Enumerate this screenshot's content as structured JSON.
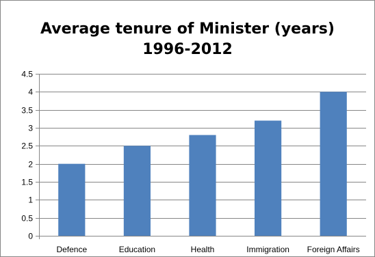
{
  "chart_data": {
    "type": "bar",
    "title_lines": [
      "Average tenure of Minister (years)",
      "1996-2012"
    ],
    "categories": [
      "Defence",
      "Education",
      "Health",
      "Immigration",
      "Foreign Affairs"
    ],
    "values": [
      2.0,
      2.5,
      2.8,
      3.2,
      4.0
    ],
    "ylim": [
      0,
      4.5
    ],
    "ytick_labels": [
      "0",
      "0.5",
      "1",
      "1.5",
      "2",
      "2.5",
      "3",
      "3.5",
      "4",
      "4.5"
    ],
    "grid": true,
    "legend": "none",
    "bar_color": "#4f81bd",
    "grid_color": "#868686"
  }
}
